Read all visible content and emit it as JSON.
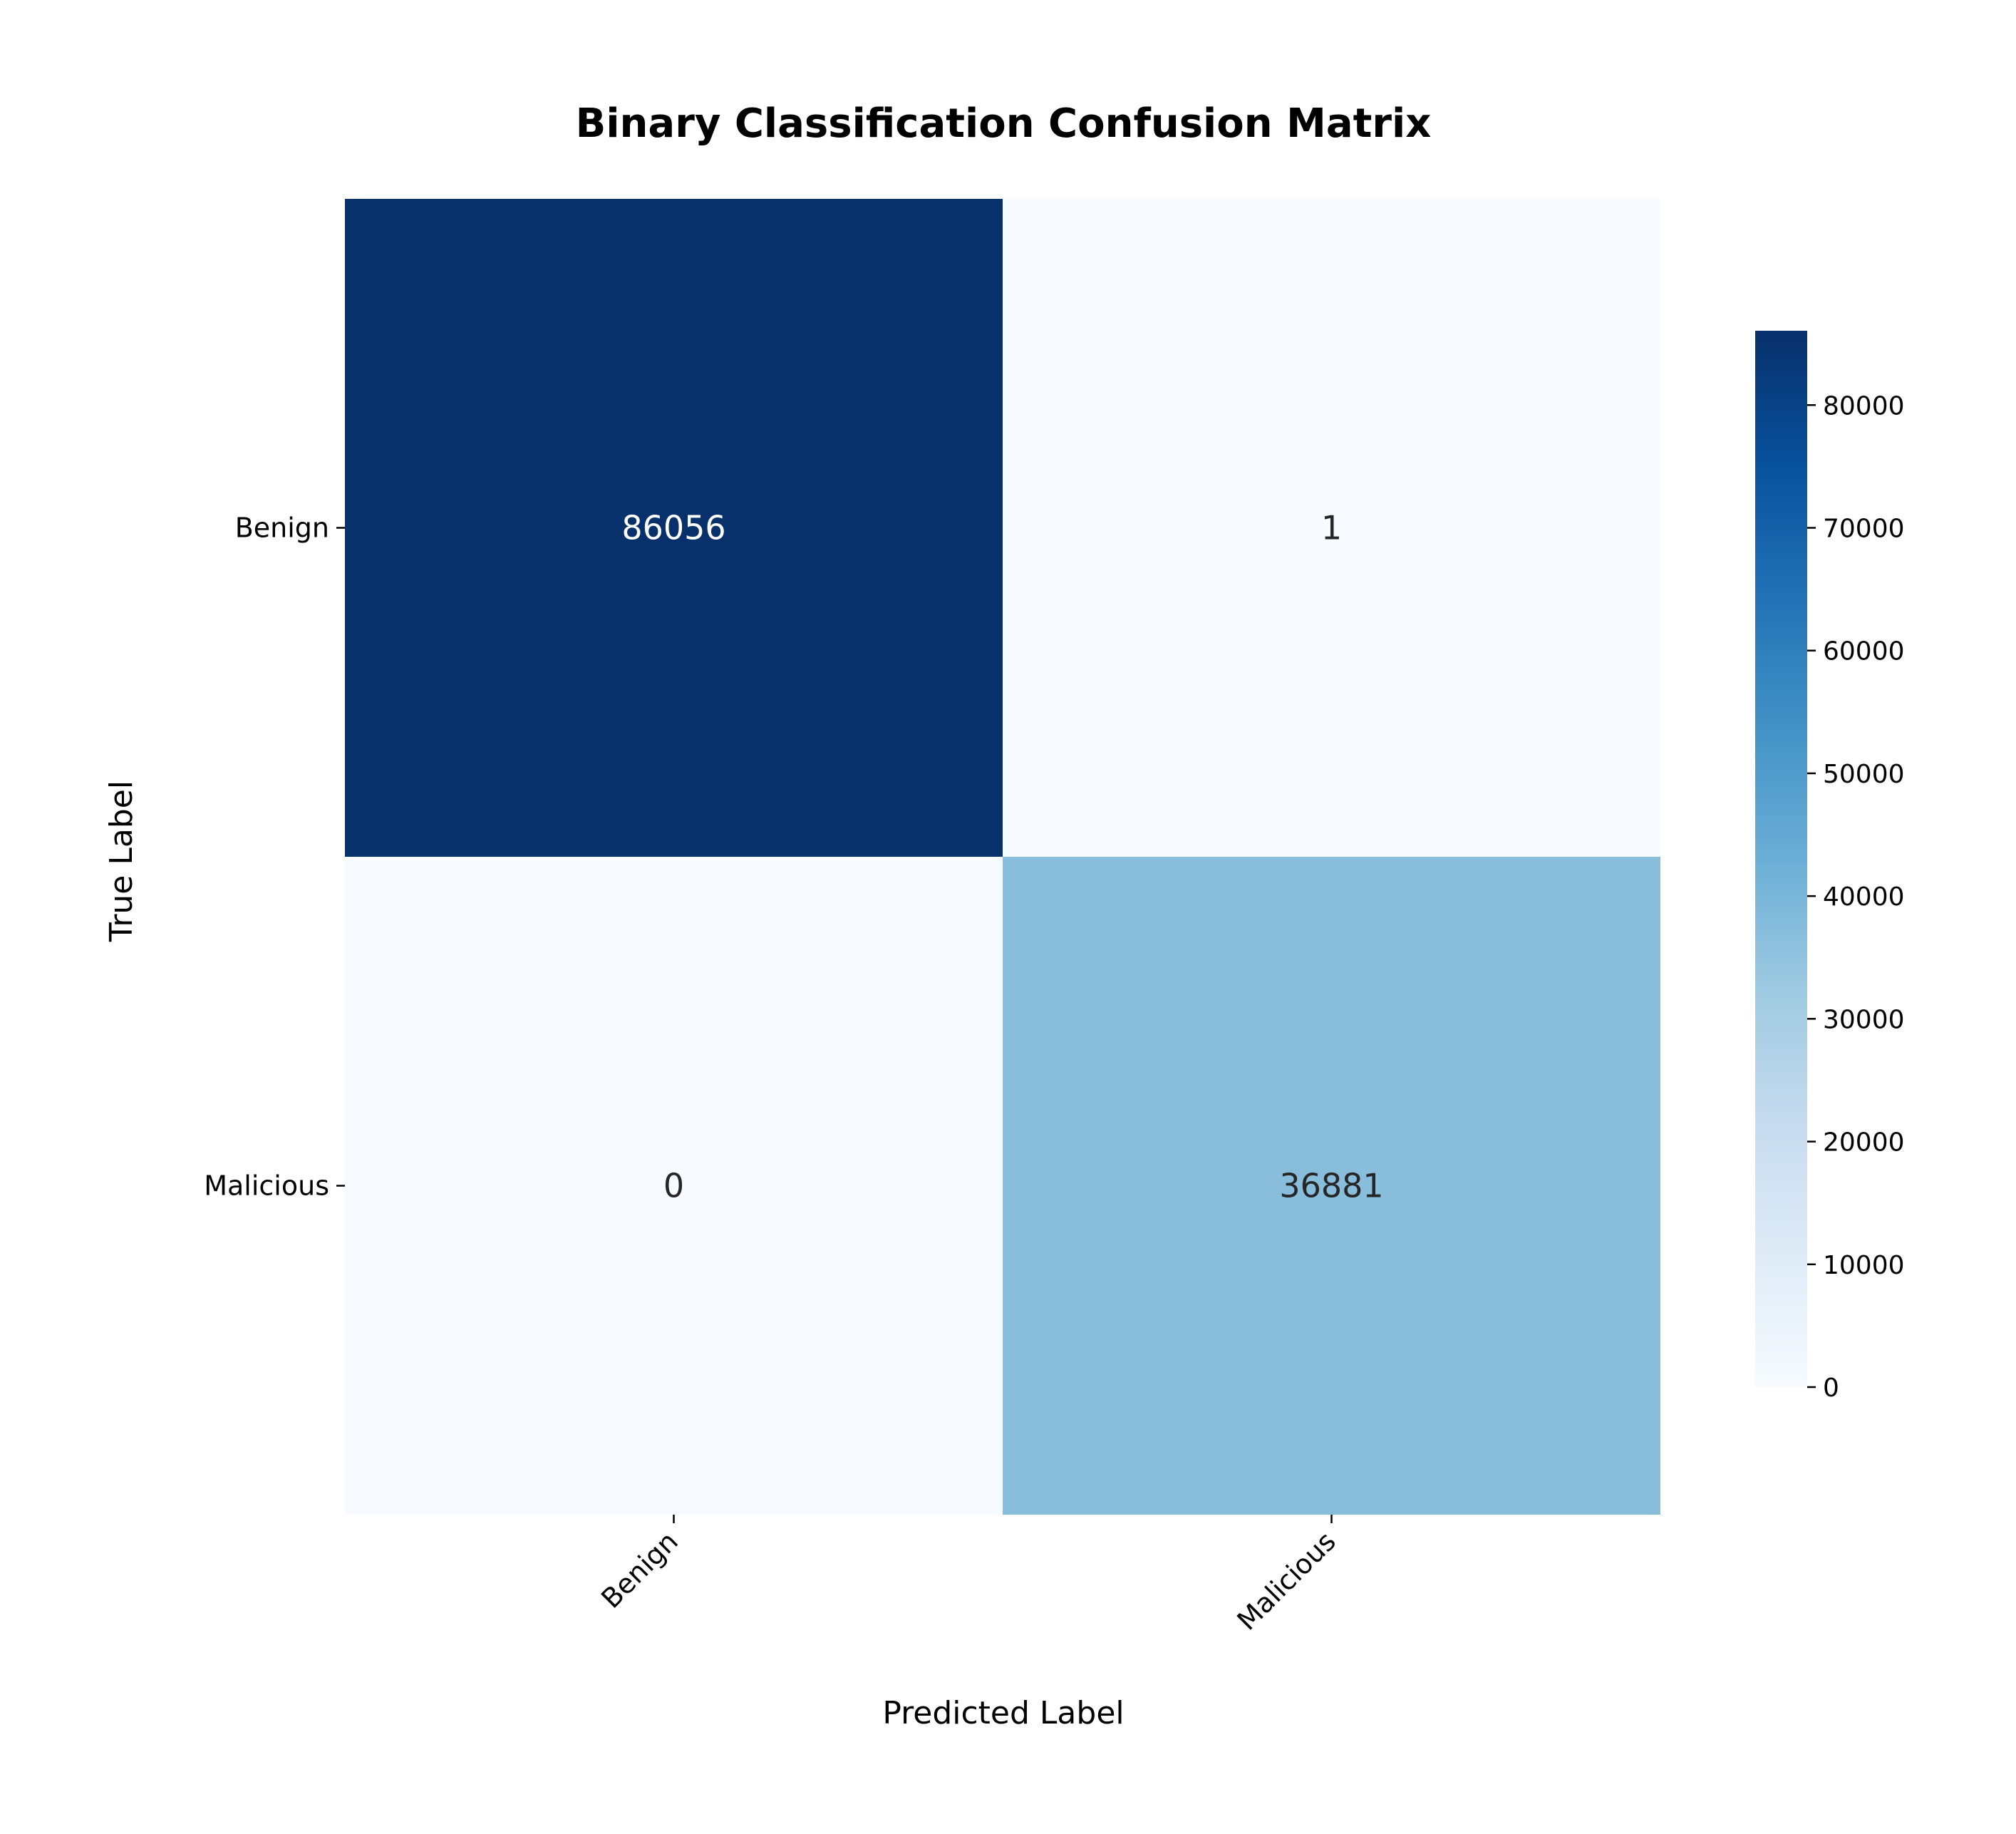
{
  "chart_data": {
    "type": "heatmap",
    "title": "Binary Classification Confusion Matrix",
    "xlabel": "Predicted Label",
    "ylabel": "True Label",
    "x_categories": [
      "Benign",
      "Malicious"
    ],
    "y_categories": [
      "Benign",
      "Malicious"
    ],
    "values": [
      [
        86056,
        1
      ],
      [
        0,
        36881
      ]
    ],
    "colormap": "Blues",
    "colorbar": {
      "min": 0,
      "max": 86056,
      "ticks": [
        0,
        10000,
        20000,
        30000,
        40000,
        50000,
        60000,
        70000,
        80000
      ]
    },
    "grid": false
  },
  "colors": {
    "cell_max": "#08306b",
    "cell_mid": "#8bbddb",
    "cell_min": "#f7fbff",
    "text_on_dark": "#ffffff",
    "text_on_light": "#262626"
  }
}
